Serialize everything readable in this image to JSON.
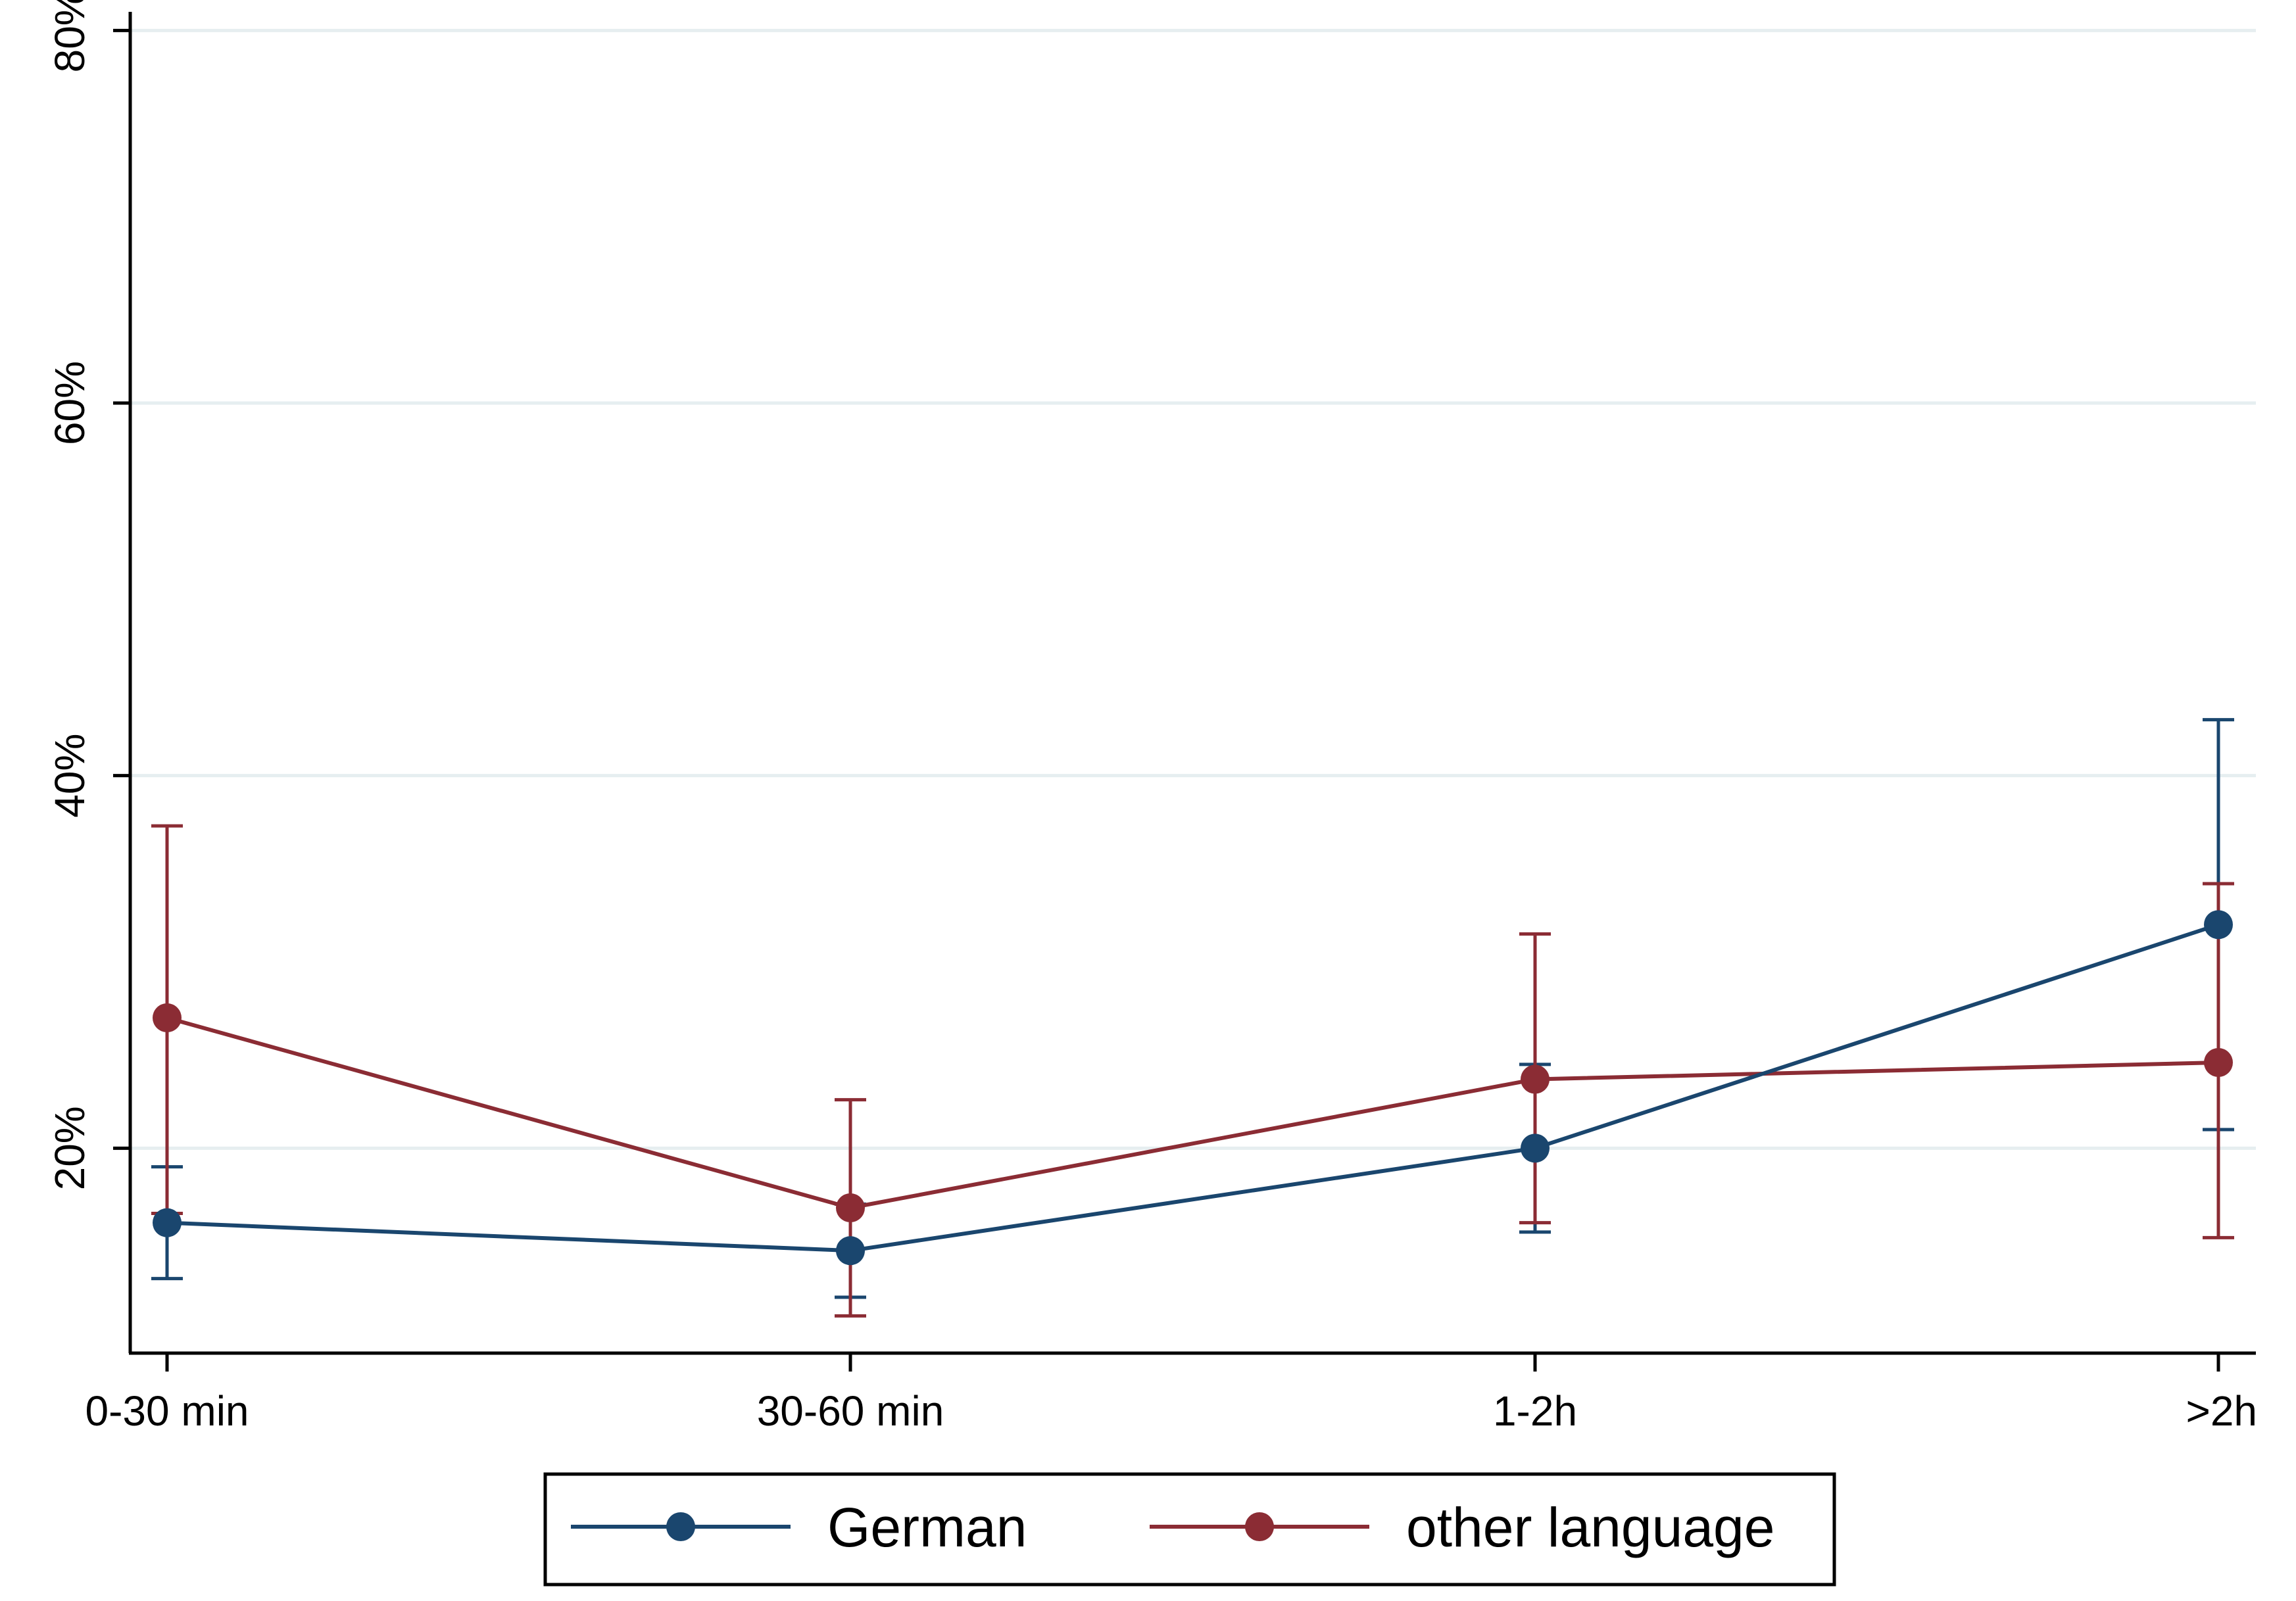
{
  "chart_data": {
    "type": "line",
    "title": "",
    "xlabel": "",
    "ylabel": "",
    "categories": [
      "0-30 min",
      "30-60 min",
      "1-2h",
      ">2h"
    ],
    "y_ticks": [
      "20%",
      "40%",
      "60%",
      "80%"
    ],
    "y_tick_values": [
      20,
      40,
      60,
      80
    ],
    "ylim": [
      9,
      81
    ],
    "grid": "horizontal",
    "legend_position": "bottom",
    "series": [
      {
        "name": "German",
        "color": "#1a466e",
        "values": [
          16,
          14.5,
          20,
          32
        ],
        "ci_low": [
          13,
          12,
          15.5,
          21
        ],
        "ci_high": [
          19,
          17,
          24.5,
          43
        ]
      },
      {
        "name": "other language",
        "color": "#8b2c34",
        "values": [
          27,
          16.8,
          23.7,
          24.6
        ],
        "ci_low": [
          16.5,
          11,
          16,
          15.2
        ],
        "ci_high": [
          37.3,
          22.6,
          31.5,
          34.2
        ]
      }
    ]
  }
}
